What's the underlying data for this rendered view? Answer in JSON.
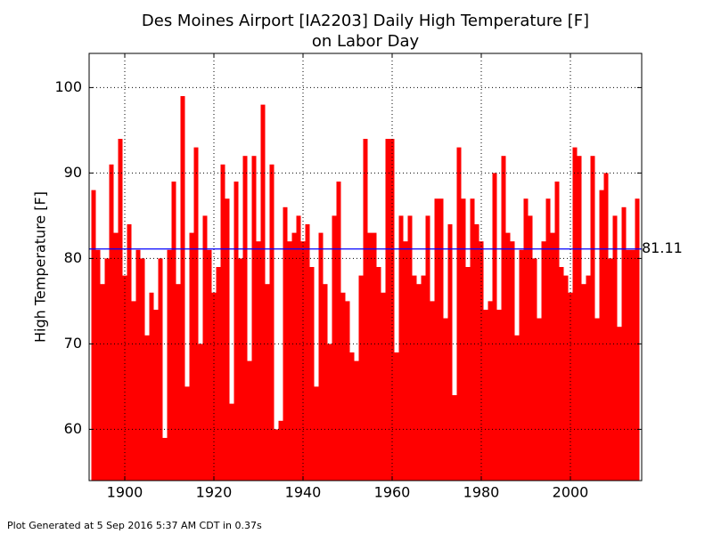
{
  "chart_data": {
    "type": "bar",
    "title": [
      "Des Moines Airport [IA2203] Daily High Temperature [F]",
      "on Labor Day"
    ],
    "ylabel": "High Temperature [F]",
    "color": "#ff0000",
    "x": [
      1893,
      1894,
      1895,
      1896,
      1897,
      1898,
      1899,
      1900,
      1901,
      1902,
      1903,
      1904,
      1905,
      1906,
      1907,
      1908,
      1909,
      1910,
      1911,
      1912,
      1913,
      1914,
      1915,
      1916,
      1917,
      1918,
      1919,
      1920,
      1921,
      1922,
      1923,
      1924,
      1925,
      1926,
      1927,
      1928,
      1929,
      1930,
      1931,
      1932,
      1933,
      1934,
      1935,
      1936,
      1937,
      1938,
      1939,
      1940,
      1941,
      1942,
      1943,
      1944,
      1945,
      1946,
      1947,
      1948,
      1949,
      1950,
      1951,
      1952,
      1953,
      1954,
      1955,
      1956,
      1957,
      1958,
      1959,
      1960,
      1961,
      1962,
      1963,
      1964,
      1965,
      1966,
      1967,
      1968,
      1969,
      1970,
      1971,
      1972,
      1973,
      1974,
      1975,
      1976,
      1977,
      1978,
      1979,
      1980,
      1981,
      1982,
      1983,
      1984,
      1985,
      1986,
      1987,
      1988,
      1989,
      1990,
      1991,
      1992,
      1993,
      1994,
      1995,
      1996,
      1997,
      1998,
      1999,
      2000,
      2001,
      2002,
      2003,
      2004,
      2005,
      2006,
      2007,
      2008,
      2009,
      2010,
      2011,
      2012,
      2013,
      2014,
      2015
    ],
    "values": [
      88,
      81,
      77,
      80,
      91,
      83,
      94,
      78,
      84,
      75,
      81,
      80,
      71,
      76,
      74,
      80,
      59,
      81,
      89,
      77,
      99,
      65,
      83,
      93,
      70,
      85,
      81,
      76,
      79,
      91,
      87,
      63,
      89,
      80,
      92,
      68,
      92,
      82,
      98,
      77,
      91,
      60,
      61,
      86,
      82,
      83,
      85,
      82,
      84,
      79,
      65,
      83,
      77,
      70,
      85,
      89,
      76,
      75,
      69,
      68,
      78,
      94,
      83,
      83,
      79,
      76,
      94,
      94,
      69,
      85,
      82,
      85,
      78,
      77,
      78,
      85,
      75,
      87,
      87,
      73,
      84,
      64,
      93,
      87,
      79,
      87,
      84,
      82,
      74,
      75,
      90,
      74,
      92,
      83,
      82,
      71,
      81,
      87,
      85,
      80,
      73,
      82,
      87,
      83,
      89,
      79,
      78,
      76,
      93,
      92,
      77,
      78,
      92,
      73,
      88,
      90,
      80,
      85,
      72,
      86,
      81,
      81,
      87
    ],
    "average": 81.11,
    "average_color": "#0000ff",
    "xlim": [
      1892,
      2016
    ],
    "xticks": [
      1900,
      1920,
      1940,
      1960,
      1980,
      2000
    ],
    "ylim": [
      54,
      104
    ],
    "yticks": [
      60,
      70,
      80,
      90,
      100
    ],
    "grid": true
  },
  "footer": "Plot Generated at 5 Sep 2016 5:37 AM CDT in 0.37s"
}
